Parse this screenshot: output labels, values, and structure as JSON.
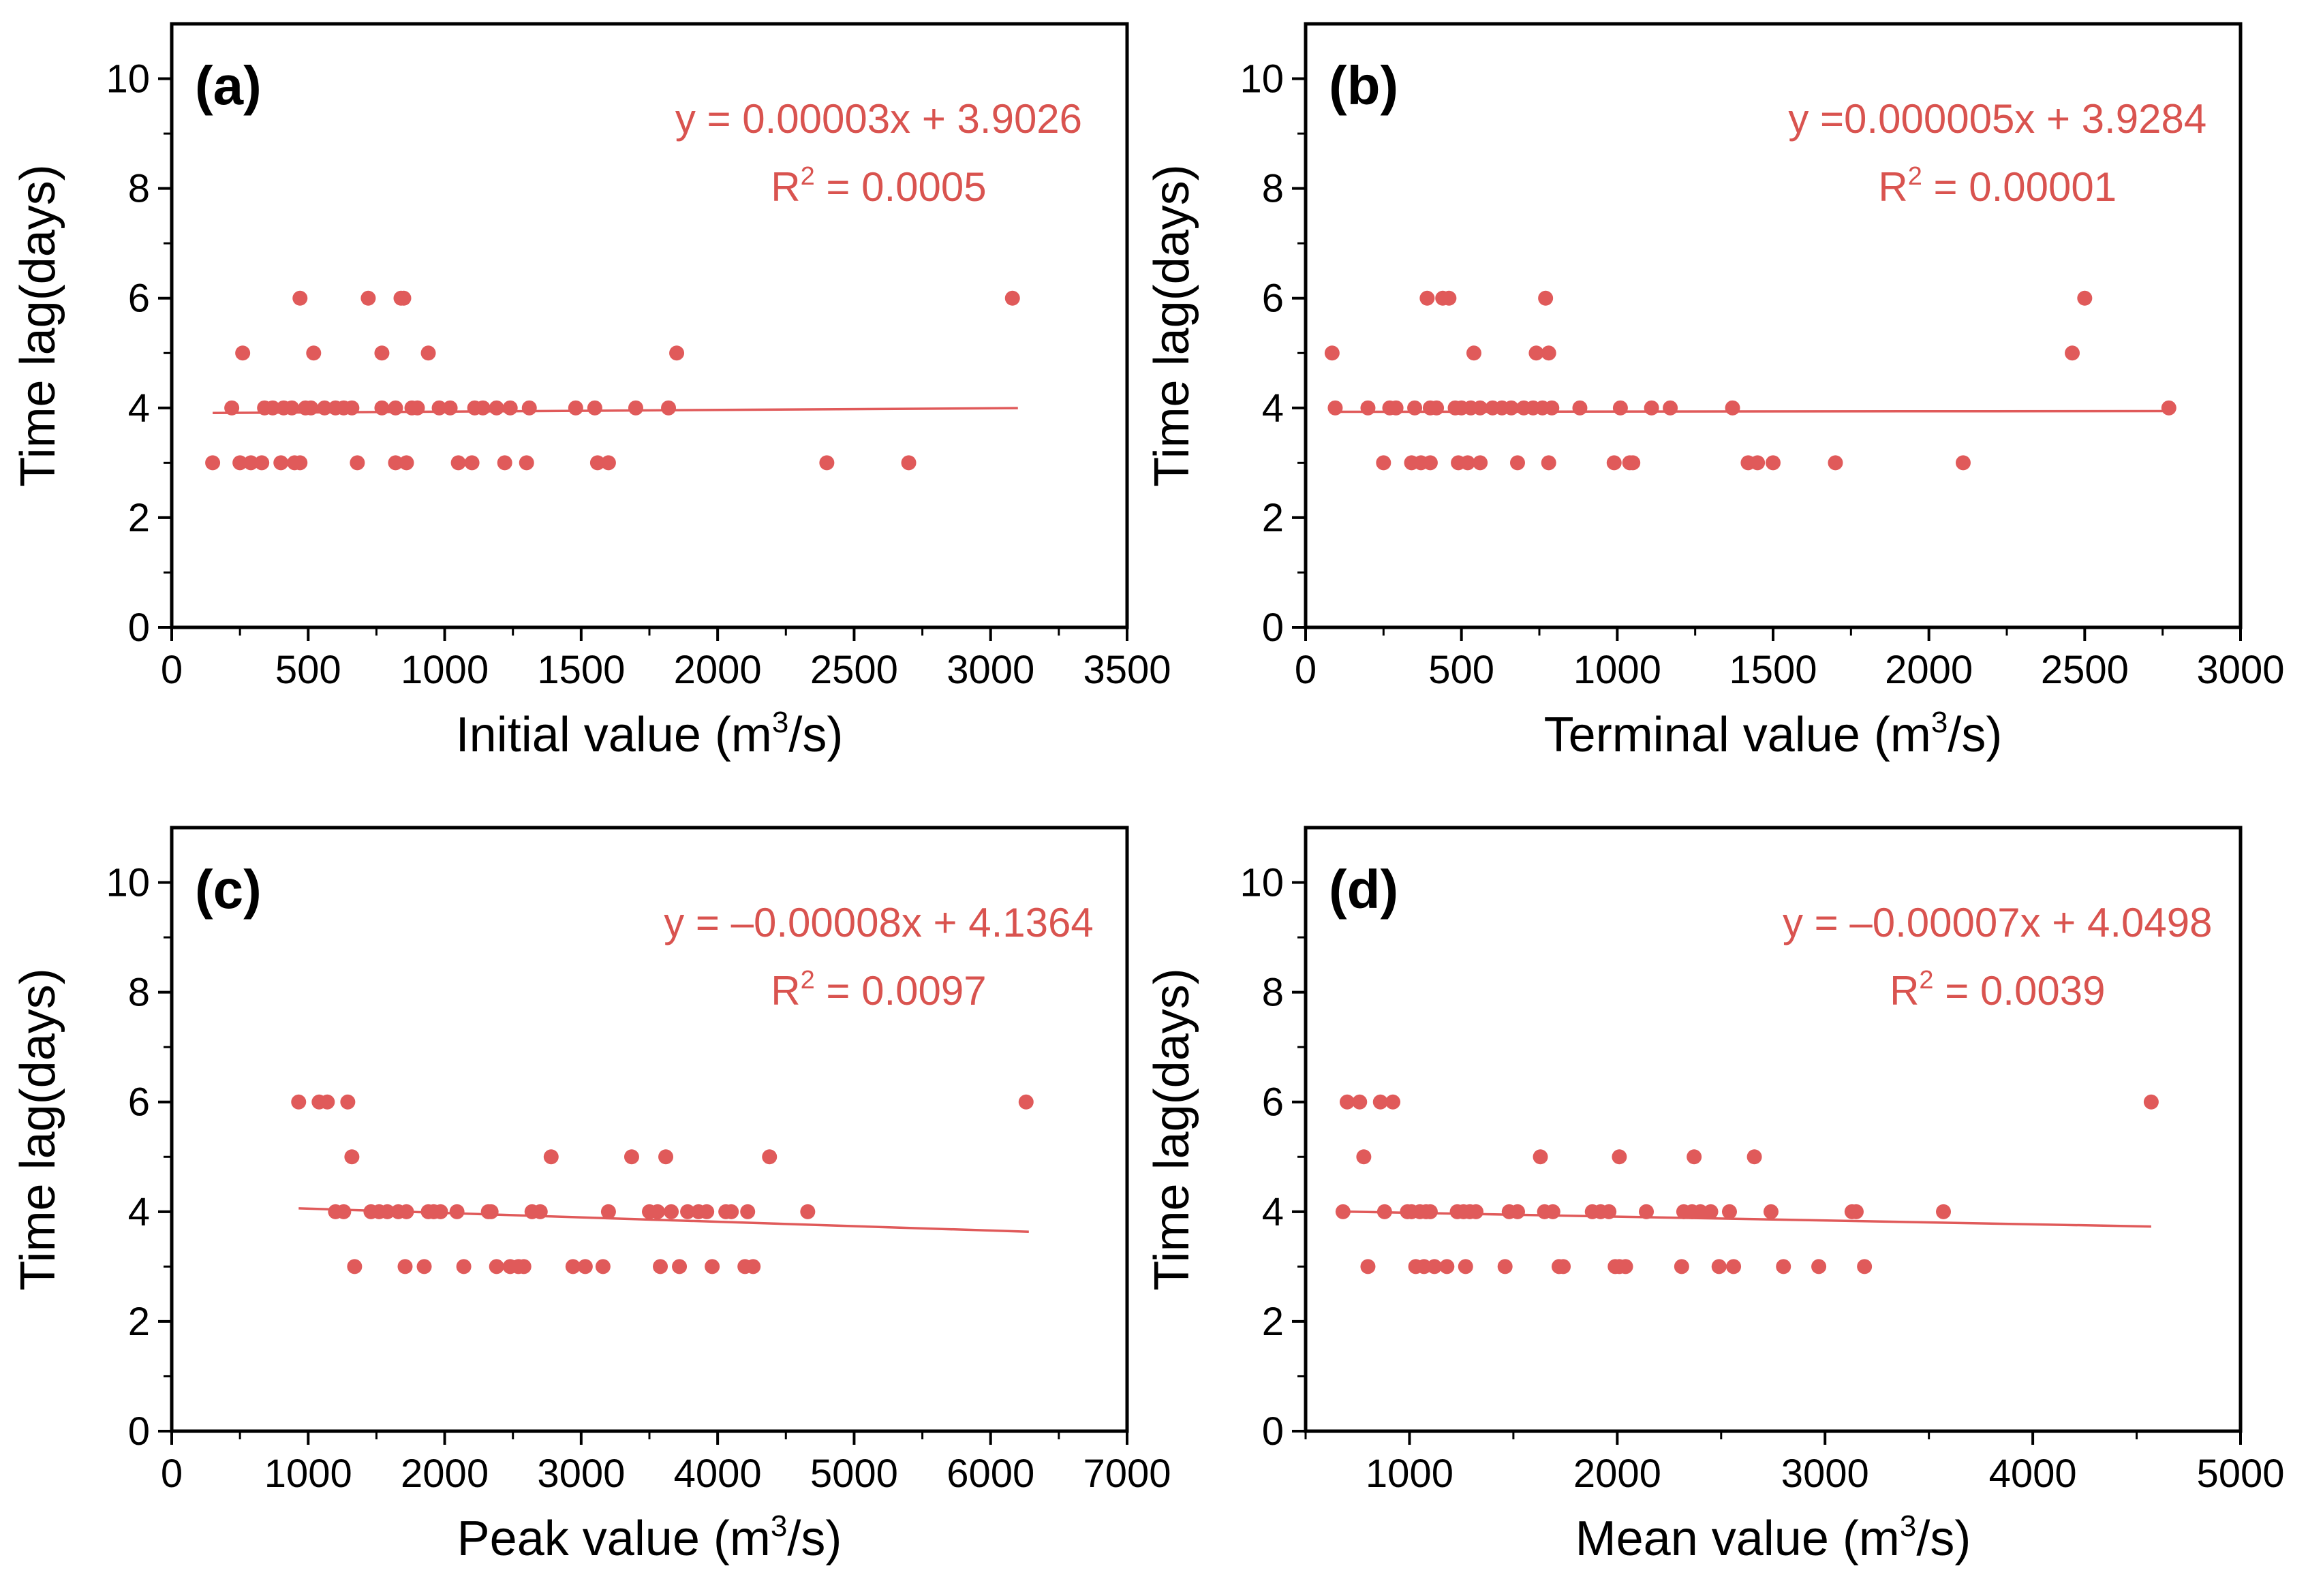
{
  "colors": {
    "marker": "#E05A5A",
    "fit": "#E05A5A",
    "equation": "#D9534F",
    "axis": "#000000"
  },
  "chart_data": [
    {
      "type": "scatter",
      "panel_label": "(a)",
      "xlabel": "Initial value (m",
      "xlabel_sup": "3",
      "xlabel_tail": "/s)",
      "ylabel": "Time lag(days)",
      "xlim": [
        0,
        3500
      ],
      "ylim": [
        0,
        11
      ],
      "xticks": [
        0,
        500,
        1000,
        1500,
        2000,
        2500,
        3000,
        3500
      ],
      "yticks": [
        0,
        2,
        4,
        6,
        8,
        10
      ],
      "xtick_labels": [
        "0",
        "500",
        "1000",
        "1500",
        "2000",
        "2500",
        "3000",
        "3500"
      ],
      "ytick_labels": [
        "0",
        "2",
        "4",
        "6",
        "8",
        "10"
      ],
      "equation": "y = 0.00003x + 3.9026",
      "r2_prefix": "R",
      "r2_sup": "2",
      "r2_value": " = 0.0005",
      "fit": {
        "slope": 3e-05,
        "intercept": 3.9026,
        "x_range": [
          150,
          3100
        ]
      },
      "points": [
        {
          "x": 150,
          "y": 3
        },
        {
          "x": 220,
          "y": 4
        },
        {
          "x": 250,
          "y": 3
        },
        {
          "x": 260,
          "y": 5
        },
        {
          "x": 290,
          "y": 3
        },
        {
          "x": 330,
          "y": 3
        },
        {
          "x": 340,
          "y": 4
        },
        {
          "x": 370,
          "y": 4
        },
        {
          "x": 400,
          "y": 3
        },
        {
          "x": 410,
          "y": 4
        },
        {
          "x": 440,
          "y": 4
        },
        {
          "x": 450,
          "y": 3
        },
        {
          "x": 470,
          "y": 3
        },
        {
          "x": 470,
          "y": 6
        },
        {
          "x": 490,
          "y": 4
        },
        {
          "x": 510,
          "y": 4
        },
        {
          "x": 520,
          "y": 5
        },
        {
          "x": 560,
          "y": 4
        },
        {
          "x": 600,
          "y": 4
        },
        {
          "x": 630,
          "y": 4
        },
        {
          "x": 660,
          "y": 4
        },
        {
          "x": 680,
          "y": 3
        },
        {
          "x": 720,
          "y": 6
        },
        {
          "x": 770,
          "y": 5
        },
        {
          "x": 770,
          "y": 4
        },
        {
          "x": 820,
          "y": 4
        },
        {
          "x": 820,
          "y": 3
        },
        {
          "x": 840,
          "y": 6
        },
        {
          "x": 850,
          "y": 6
        },
        {
          "x": 860,
          "y": 3
        },
        {
          "x": 880,
          "y": 4
        },
        {
          "x": 900,
          "y": 4
        },
        {
          "x": 940,
          "y": 5
        },
        {
          "x": 980,
          "y": 4
        },
        {
          "x": 1020,
          "y": 4
        },
        {
          "x": 1050,
          "y": 3
        },
        {
          "x": 1100,
          "y": 3
        },
        {
          "x": 1110,
          "y": 4
        },
        {
          "x": 1140,
          "y": 4
        },
        {
          "x": 1190,
          "y": 4
        },
        {
          "x": 1220,
          "y": 3
        },
        {
          "x": 1240,
          "y": 4
        },
        {
          "x": 1300,
          "y": 3
        },
        {
          "x": 1310,
          "y": 4
        },
        {
          "x": 1480,
          "y": 4
        },
        {
          "x": 1550,
          "y": 4
        },
        {
          "x": 1560,
          "y": 3
        },
        {
          "x": 1600,
          "y": 3
        },
        {
          "x": 1700,
          "y": 4
        },
        {
          "x": 1820,
          "y": 4
        },
        {
          "x": 1850,
          "y": 5
        },
        {
          "x": 2400,
          "y": 3
        },
        {
          "x": 2700,
          "y": 3
        },
        {
          "x": 3080,
          "y": 6
        }
      ]
    },
    {
      "type": "scatter",
      "panel_label": "(b)",
      "xlabel": "Terminal value (m",
      "xlabel_sup": "3",
      "xlabel_tail": "/s)",
      "ylabel": "Time lag(days)",
      "xlim": [
        0,
        3000
      ],
      "ylim": [
        0,
        11
      ],
      "xticks": [
        0,
        500,
        1000,
        1500,
        2000,
        2500,
        3000
      ],
      "yticks": [
        0,
        2,
        4,
        6,
        8,
        10
      ],
      "xtick_labels": [
        "0",
        "500",
        "1000",
        "1500",
        "2000",
        "2500",
        "3000"
      ],
      "ytick_labels": [
        "0",
        "2",
        "4",
        "6",
        "8",
        "10"
      ],
      "equation": "y =0.000005x + 3.9284",
      "r2_prefix": "R",
      "r2_sup": "2",
      "r2_value": " = 0.00001",
      "fit": {
        "slope": 5e-06,
        "intercept": 3.9284,
        "x_range": [
          90,
          2770
        ]
      },
      "points": [
        {
          "x": 85,
          "y": 5
        },
        {
          "x": 95,
          "y": 4
        },
        {
          "x": 200,
          "y": 4
        },
        {
          "x": 250,
          "y": 3
        },
        {
          "x": 270,
          "y": 4
        },
        {
          "x": 290,
          "y": 4
        },
        {
          "x": 340,
          "y": 3
        },
        {
          "x": 350,
          "y": 4
        },
        {
          "x": 370,
          "y": 3
        },
        {
          "x": 390,
          "y": 6
        },
        {
          "x": 400,
          "y": 3
        },
        {
          "x": 400,
          "y": 4
        },
        {
          "x": 420,
          "y": 4
        },
        {
          "x": 440,
          "y": 6
        },
        {
          "x": 460,
          "y": 6
        },
        {
          "x": 480,
          "y": 4
        },
        {
          "x": 490,
          "y": 3
        },
        {
          "x": 500,
          "y": 4
        },
        {
          "x": 520,
          "y": 3
        },
        {
          "x": 530,
          "y": 4
        },
        {
          "x": 540,
          "y": 5
        },
        {
          "x": 560,
          "y": 4
        },
        {
          "x": 560,
          "y": 3
        },
        {
          "x": 600,
          "y": 4
        },
        {
          "x": 630,
          "y": 4
        },
        {
          "x": 660,
          "y": 4
        },
        {
          "x": 680,
          "y": 3
        },
        {
          "x": 700,
          "y": 4
        },
        {
          "x": 730,
          "y": 4
        },
        {
          "x": 740,
          "y": 5
        },
        {
          "x": 760,
          "y": 4
        },
        {
          "x": 770,
          "y": 6
        },
        {
          "x": 780,
          "y": 3
        },
        {
          "x": 780,
          "y": 5
        },
        {
          "x": 790,
          "y": 4
        },
        {
          "x": 880,
          "y": 4
        },
        {
          "x": 990,
          "y": 3
        },
        {
          "x": 1010,
          "y": 4
        },
        {
          "x": 1040,
          "y": 3
        },
        {
          "x": 1050,
          "y": 3
        },
        {
          "x": 1110,
          "y": 4
        },
        {
          "x": 1170,
          "y": 4
        },
        {
          "x": 1370,
          "y": 4
        },
        {
          "x": 1420,
          "y": 3
        },
        {
          "x": 1450,
          "y": 3
        },
        {
          "x": 1500,
          "y": 3
        },
        {
          "x": 1700,
          "y": 3
        },
        {
          "x": 2110,
          "y": 3
        },
        {
          "x": 2460,
          "y": 5
        },
        {
          "x": 2500,
          "y": 6
        },
        {
          "x": 2770,
          "y": 4
        }
      ]
    },
    {
      "type": "scatter",
      "panel_label": "(c)",
      "xlabel": "Peak value (m",
      "xlabel_sup": "3",
      "xlabel_tail": "/s)",
      "ylabel": "Time lag(days)",
      "xlim": [
        0,
        7000
      ],
      "ylim": [
        0,
        11
      ],
      "xticks": [
        0,
        1000,
        2000,
        3000,
        4000,
        5000,
        6000,
        7000
      ],
      "yticks": [
        0,
        2,
        4,
        6,
        8,
        10
      ],
      "xtick_labels": [
        "0",
        "1000",
        "2000",
        "3000",
        "4000",
        "5000",
        "6000",
        "7000"
      ],
      "ytick_labels": [
        "0",
        "2",
        "4",
        "6",
        "8",
        "10"
      ],
      "equation": "y = –0.00008x + 4.1364",
      "r2_prefix": "R",
      "r2_sup": "2",
      "r2_value": " = 0.0097",
      "fit": {
        "slope": -8e-05,
        "intercept": 4.1364,
        "x_range": [
          930,
          6280
        ]
      },
      "points": [
        {
          "x": 930,
          "y": 6
        },
        {
          "x": 1080,
          "y": 6
        },
        {
          "x": 1140,
          "y": 6
        },
        {
          "x": 1200,
          "y": 4
        },
        {
          "x": 1260,
          "y": 4
        },
        {
          "x": 1290,
          "y": 6
        },
        {
          "x": 1320,
          "y": 5
        },
        {
          "x": 1340,
          "y": 3
        },
        {
          "x": 1460,
          "y": 4
        },
        {
          "x": 1520,
          "y": 4
        },
        {
          "x": 1580,
          "y": 4
        },
        {
          "x": 1660,
          "y": 4
        },
        {
          "x": 1710,
          "y": 3
        },
        {
          "x": 1720,
          "y": 4
        },
        {
          "x": 1850,
          "y": 3
        },
        {
          "x": 1880,
          "y": 4
        },
        {
          "x": 1920,
          "y": 4
        },
        {
          "x": 1970,
          "y": 4
        },
        {
          "x": 2090,
          "y": 4
        },
        {
          "x": 2140,
          "y": 3
        },
        {
          "x": 2320,
          "y": 4
        },
        {
          "x": 2340,
          "y": 4
        },
        {
          "x": 2380,
          "y": 3
        },
        {
          "x": 2480,
          "y": 3
        },
        {
          "x": 2540,
          "y": 3
        },
        {
          "x": 2580,
          "y": 3
        },
        {
          "x": 2640,
          "y": 4
        },
        {
          "x": 2700,
          "y": 4
        },
        {
          "x": 2780,
          "y": 5
        },
        {
          "x": 2940,
          "y": 3
        },
        {
          "x": 3030,
          "y": 3
        },
        {
          "x": 3160,
          "y": 3
        },
        {
          "x": 3200,
          "y": 4
        },
        {
          "x": 3370,
          "y": 5
        },
        {
          "x": 3500,
          "y": 4
        },
        {
          "x": 3560,
          "y": 4
        },
        {
          "x": 3580,
          "y": 3
        },
        {
          "x": 3620,
          "y": 5
        },
        {
          "x": 3660,
          "y": 4
        },
        {
          "x": 3720,
          "y": 3
        },
        {
          "x": 3780,
          "y": 4
        },
        {
          "x": 3860,
          "y": 4
        },
        {
          "x": 3920,
          "y": 4
        },
        {
          "x": 3960,
          "y": 3
        },
        {
          "x": 4060,
          "y": 4
        },
        {
          "x": 4100,
          "y": 4
        },
        {
          "x": 4200,
          "y": 3
        },
        {
          "x": 4220,
          "y": 4
        },
        {
          "x": 4260,
          "y": 3
        },
        {
          "x": 4380,
          "y": 5
        },
        {
          "x": 4660,
          "y": 4
        },
        {
          "x": 6260,
          "y": 6
        }
      ]
    },
    {
      "type": "scatter",
      "panel_label": "(d)",
      "xlabel": "Mean value (m",
      "xlabel_sup": "3",
      "xlabel_tail": "/s)",
      "ylabel": "Time lag(days)",
      "xlim": [
        500,
        5000
      ],
      "ylim": [
        0,
        11
      ],
      "xticks": [
        1000,
        2000,
        3000,
        4000,
        5000
      ],
      "yticks": [
        0,
        2,
        4,
        6,
        8,
        10
      ],
      "xtick_labels": [
        "1000",
        "2000",
        "3000",
        "4000",
        "5000"
      ],
      "ytick_labels": [
        "0",
        "2",
        "4",
        "6",
        "8",
        "10"
      ],
      "equation": "y = –0.00007x + 4.0498",
      "r2_prefix": "R",
      "r2_sup": "2",
      "r2_value": " = 0.0039",
      "fit": {
        "slope": -7e-05,
        "intercept": 4.0498,
        "x_range": [
          680,
          4570
        ]
      },
      "points": [
        {
          "x": 680,
          "y": 4
        },
        {
          "x": 700,
          "y": 6
        },
        {
          "x": 760,
          "y": 6
        },
        {
          "x": 780,
          "y": 5
        },
        {
          "x": 800,
          "y": 3
        },
        {
          "x": 860,
          "y": 6
        },
        {
          "x": 880,
          "y": 4
        },
        {
          "x": 920,
          "y": 6
        },
        {
          "x": 990,
          "y": 4
        },
        {
          "x": 1010,
          "y": 4
        },
        {
          "x": 1030,
          "y": 3
        },
        {
          "x": 1050,
          "y": 4
        },
        {
          "x": 1070,
          "y": 3
        },
        {
          "x": 1080,
          "y": 4
        },
        {
          "x": 1100,
          "y": 4
        },
        {
          "x": 1120,
          "y": 3
        },
        {
          "x": 1180,
          "y": 3
        },
        {
          "x": 1230,
          "y": 4
        },
        {
          "x": 1260,
          "y": 4
        },
        {
          "x": 1270,
          "y": 3
        },
        {
          "x": 1290,
          "y": 4
        },
        {
          "x": 1320,
          "y": 4
        },
        {
          "x": 1460,
          "y": 3
        },
        {
          "x": 1480,
          "y": 4
        },
        {
          "x": 1520,
          "y": 4
        },
        {
          "x": 1630,
          "y": 5
        },
        {
          "x": 1650,
          "y": 4
        },
        {
          "x": 1690,
          "y": 4
        },
        {
          "x": 1720,
          "y": 3
        },
        {
          "x": 1740,
          "y": 3
        },
        {
          "x": 1880,
          "y": 4
        },
        {
          "x": 1920,
          "y": 4
        },
        {
          "x": 1960,
          "y": 4
        },
        {
          "x": 1990,
          "y": 3
        },
        {
          "x": 2010,
          "y": 3
        },
        {
          "x": 2010,
          "y": 5
        },
        {
          "x": 2040,
          "y": 3
        },
        {
          "x": 2140,
          "y": 4
        },
        {
          "x": 2310,
          "y": 3
        },
        {
          "x": 2320,
          "y": 4
        },
        {
          "x": 2360,
          "y": 4
        },
        {
          "x": 2370,
          "y": 5
        },
        {
          "x": 2400,
          "y": 4
        },
        {
          "x": 2450,
          "y": 4
        },
        {
          "x": 2490,
          "y": 3
        },
        {
          "x": 2540,
          "y": 4
        },
        {
          "x": 2560,
          "y": 3
        },
        {
          "x": 2660,
          "y": 5
        },
        {
          "x": 2740,
          "y": 4
        },
        {
          "x": 2800,
          "y": 3
        },
        {
          "x": 2970,
          "y": 3
        },
        {
          "x": 3130,
          "y": 4
        },
        {
          "x": 3150,
          "y": 4
        },
        {
          "x": 3190,
          "y": 3
        },
        {
          "x": 3570,
          "y": 4
        },
        {
          "x": 4570,
          "y": 6
        }
      ]
    }
  ]
}
